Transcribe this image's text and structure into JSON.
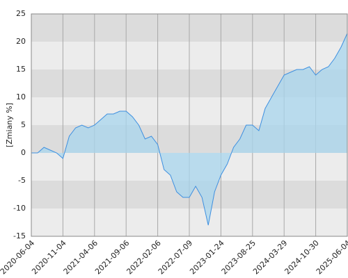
{
  "chart_data": {
    "type": "line",
    "categories": [
      "2020-06-04",
      null,
      null,
      null,
      null,
      "2020-11-04",
      null,
      null,
      null,
      null,
      "2021-04-06",
      null,
      null,
      null,
      null,
      "2021-09-06",
      null,
      null,
      null,
      null,
      "2022-02-06",
      null,
      null,
      null,
      null,
      "2022-07-09",
      null,
      null,
      null,
      null,
      "2023-01-24",
      null,
      null,
      null,
      null,
      "2023-08-25",
      null,
      null,
      null,
      null,
      "2024-03-29",
      null,
      null,
      null,
      null,
      "2024-10-30",
      null,
      null,
      null,
      null,
      "2025-06-04"
    ],
    "values": [
      0,
      0,
      1,
      0.5,
      0,
      -1,
      3,
      4.5,
      5,
      4.5,
      5,
      6,
      7,
      7,
      7.5,
      7.5,
      6.5,
      5,
      2.5,
      3,
      1.5,
      -3,
      -4,
      -7,
      -8,
      -8,
      -6,
      -8,
      -13,
      -7,
      -4,
      -2,
      1,
      2.5,
      5,
      5,
      4,
      8,
      10,
      12,
      14,
      14.5,
      15,
      15,
      15.5,
      14,
      15,
      15.5,
      17,
      19,
      21.5
    ],
    "color": "#3d8fe0",
    "fill_color": "#a8d6ee",
    "ylabel": "[Zmiany %]",
    "ylim": [
      -15,
      25
    ],
    "yticks": [
      -15,
      -10,
      -5,
      0,
      5,
      10,
      15,
      20,
      25
    ],
    "grid": true
  }
}
